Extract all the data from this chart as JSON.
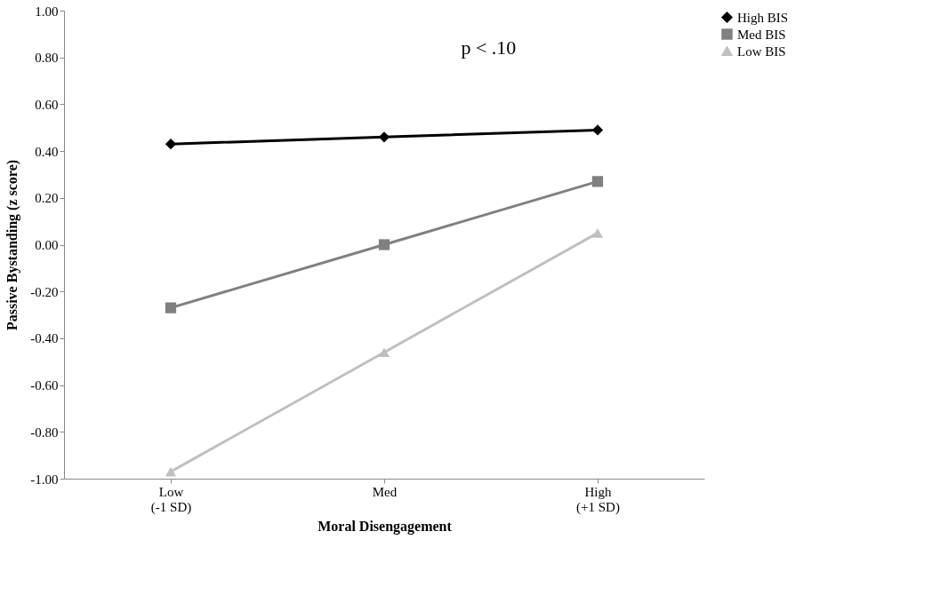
{
  "chart_data": {
    "type": "line",
    "xlabel": "Moral Disengagement",
    "ylabel": "Passive Bystanding (z score)",
    "categories": [
      "Low\n(-1 SD)",
      "Med",
      "High\n(+1 SD)"
    ],
    "series": [
      {
        "name": "High BIS",
        "color": "#000000",
        "marker": "diamond",
        "values": [
          0.43,
          0.46,
          0.49
        ]
      },
      {
        "name": "Med BIS",
        "color": "#808080",
        "marker": "square",
        "values": [
          -0.27,
          0.0,
          0.27
        ]
      },
      {
        "name": "Low BIS",
        "color": "#bfbfbf",
        "marker": "triangle",
        "values": [
          -0.97,
          -0.46,
          0.05
        ]
      }
    ],
    "ylim": [
      -1,
      1
    ],
    "yticks": [
      {
        "value": -1,
        "label": "-1.00"
      },
      {
        "value": -0.8,
        "label": "-0.80"
      },
      {
        "value": -0.6,
        "label": "-0.60"
      },
      {
        "value": -0.4,
        "label": "-0.40"
      },
      {
        "value": -0.2,
        "label": "-0.20"
      },
      {
        "value": 0,
        "label": "0.00"
      },
      {
        "value": 0.2,
        "label": "0.20"
      },
      {
        "value": 0.4,
        "label": "0.40"
      },
      {
        "value": 0.6,
        "label": "0.60"
      },
      {
        "value": 0.8,
        "label": "0.80"
      },
      {
        "value": 1,
        "label": "1.00"
      }
    ],
    "annotations": [
      "p < .10"
    ],
    "grid": false,
    "legend": "right",
    "line_style": "solid"
  }
}
